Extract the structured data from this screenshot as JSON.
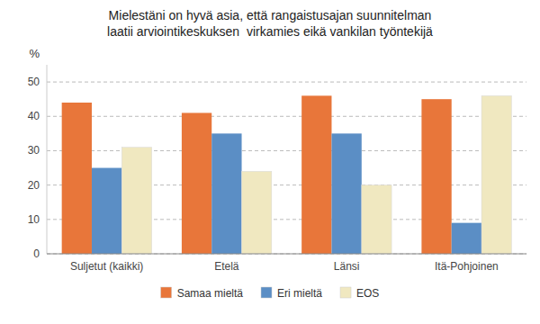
{
  "chart_data": {
    "type": "bar",
    "title": "Mielestäni on hyvä asia, että rangaistusajan suunnitelman\nlaatii arviointikeskuksen  virkamies eikä vankilan työntekijä",
    "ylabel": "%",
    "categories": [
      "Suljetut (kaikki)",
      "Etelä",
      "Länsi",
      "Itä-Pohjoinen"
    ],
    "series": [
      {
        "name": "Samaa mieltä",
        "color": "#E8763A",
        "values": [
          44,
          41,
          46,
          45
        ]
      },
      {
        "name": "Eri mieltä",
        "color": "#5B8EC5",
        "values": [
          25,
          35,
          35,
          9
        ]
      },
      {
        "name": "EOS",
        "color": "#F0E8C0",
        "values": [
          31,
          24,
          20,
          46
        ]
      }
    ],
    "ylim": [
      0,
      55
    ],
    "yticks": [
      0,
      10,
      20,
      30,
      40,
      50
    ],
    "grid": true,
    "legend": "bottom"
  }
}
